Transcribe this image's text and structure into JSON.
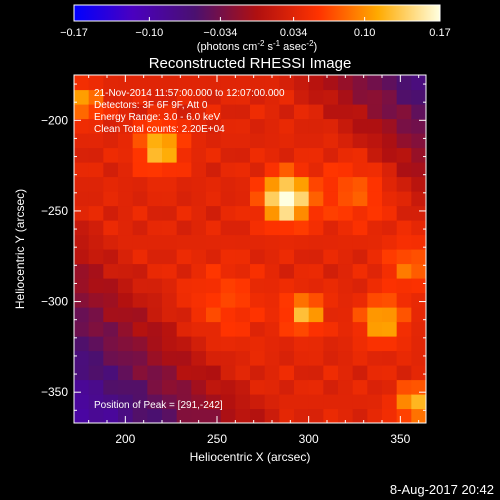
{
  "chart_data": {
    "type": "heatmap",
    "title": "Reconstructed RHESSI Image",
    "xlabel": "Heliocentric X (arcsec)",
    "ylabel": "Heliocentric Y (arcsec)",
    "xlim": [
      172,
      364
    ],
    "ylim": [
      -367,
      -175
    ],
    "xticks": [
      200,
      250,
      300,
      350
    ],
    "yticks": [
      -200,
      -250,
      -300,
      -350
    ],
    "colorbar": {
      "colormap": "hot",
      "vmin": -0.17,
      "vmax": 0.17,
      "ticks": [
        "-0.17",
        "-0.10",
        "-0.034",
        "0.034",
        "0.10",
        "0.17"
      ],
      "unit_label": "(photons cm",
      "unit_sup1": "-2",
      "unit_mid": " s",
      "unit_sup2": "-1",
      "unit_mid2": " asec",
      "unit_sup3": "-2",
      "unit_end": ")"
    },
    "annotations": [
      "21-Nov-2014 11:57:00.000 to 12:07:00.000",
      "Detectors: 3F 6F 9F, Att 0",
      "Energy Range: 3.0 - 6.0 keV",
      "Clean     Total counts: 2.20E+04"
    ],
    "peak_label": "Position of Peak = [291,-242]",
    "peak": {
      "x": 291,
      "y": -242,
      "value": 0.17
    },
    "sources": [
      {
        "x": 288,
        "y": -243,
        "amp": 0.15,
        "sigma": 9
      },
      {
        "x": 219,
        "y": -215,
        "amp": 0.1,
        "sigma": 8
      },
      {
        "x": 178,
        "y": -190,
        "amp": 0.08,
        "sigma": 6
      },
      {
        "x": 298,
        "y": -306,
        "amp": 0.09,
        "sigma": 7
      },
      {
        "x": 340,
        "y": -310,
        "amp": 0.09,
        "sigma": 8
      },
      {
        "x": 355,
        "y": -280,
        "amp": 0.05,
        "sigma": 9
      },
      {
        "x": 358,
        "y": -356,
        "amp": 0.09,
        "sigma": 7
      },
      {
        "x": 325,
        "y": -240,
        "amp": 0.04,
        "sigma": 12
      },
      {
        "x": 255,
        "y": -300,
        "amp": 0.03,
        "sigma": 14
      }
    ]
  },
  "footer": {
    "date_stamp": "8-Aug-2017 20:42"
  },
  "colors": {
    "background": "#000000",
    "text": "#ffffff",
    "frame": "#ffffff"
  }
}
